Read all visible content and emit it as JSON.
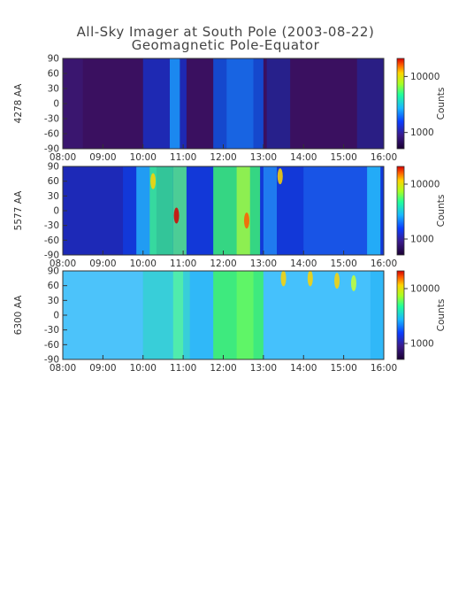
{
  "header": {
    "title": "All-Sky Imager at South Pole (2003-08-22)",
    "subtitle": "Geomagnetic Pole-Equator"
  },
  "chart_data": [
    {
      "type": "heatmap",
      "ylabel": "4278 AA",
      "x_ticks": [
        "08:00",
        "09:00",
        "10:00",
        "11:00",
        "12:00",
        "13:00",
        "14:00",
        "15:00",
        "16:00"
      ],
      "y_ticks": [
        90,
        60,
        30,
        0,
        -30,
        -60,
        -90
      ],
      "ylim": [
        -90,
        90
      ],
      "xlim": [
        "08:00",
        "16:00"
      ],
      "colorbar": {
        "label": "Counts",
        "ticks": [
          "10000",
          "1000"
        ],
        "scale": "log"
      },
      "dominant": "dark blue / purple background with blue bands near 10:00-11:00 and 11:45-13:00"
    },
    {
      "type": "heatmap",
      "ylabel": "5577 AA",
      "x_ticks": [
        "08:00",
        "09:00",
        "10:00",
        "11:00",
        "12:00",
        "13:00",
        "14:00",
        "15:00",
        "16:00"
      ],
      "y_ticks": [
        90,
        60,
        30,
        0,
        -30,
        -60,
        -90
      ],
      "ylim": [
        -90,
        90
      ],
      "xlim": [
        "08:00",
        "16:00"
      ],
      "colorbar": {
        "label": "Counts",
        "ticks": [
          "10000",
          "1000"
        ],
        "scale": "log"
      },
      "dominant": "blue with green/yellow/red streaks 10:00-11:00, green band 11:45-13:00"
    },
    {
      "type": "heatmap",
      "ylabel": "6300 AA",
      "x_ticks": [
        "08:00",
        "09:00",
        "10:00",
        "11:00",
        "12:00",
        "13:00",
        "14:00",
        "15:00",
        "16:00"
      ],
      "y_ticks": [
        90,
        60,
        30,
        0,
        -30,
        -60,
        -90
      ],
      "ylim": [
        -90,
        90
      ],
      "xlim": [
        "08:00",
        "16:00"
      ],
      "colorbar": {
        "label": "Counts",
        "ticks": [
          "10000",
          "1000"
        ],
        "scale": "log"
      },
      "dominant": "cyan / light blue background, green band 11:45-13:00, yellow at top 13:30-15:30"
    }
  ]
}
